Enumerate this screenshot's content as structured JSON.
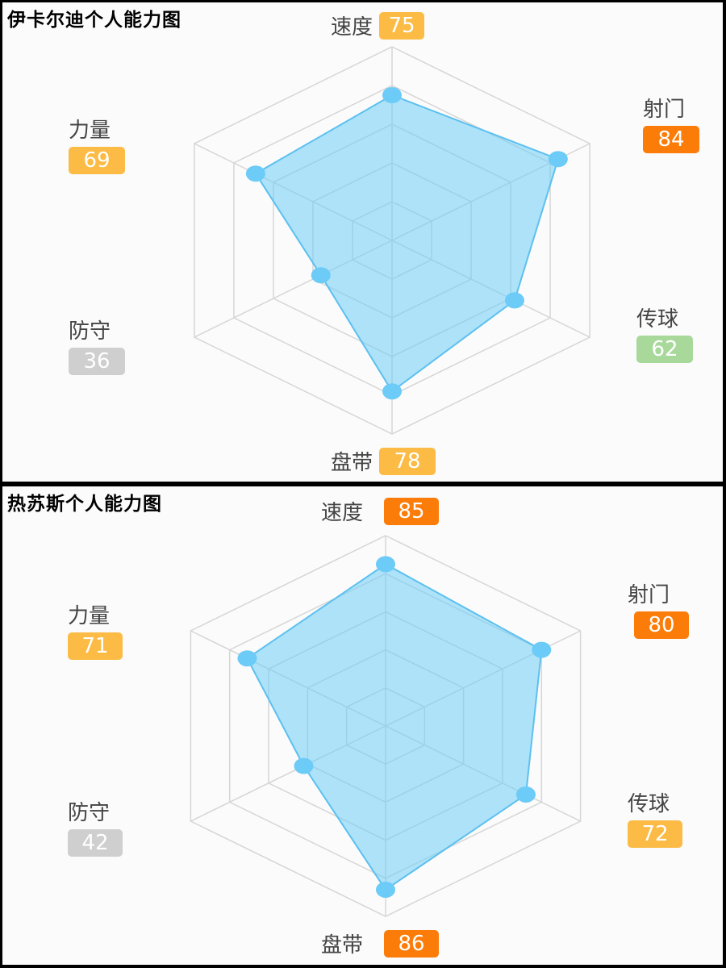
{
  "colors": {
    "grid": "#d6d6d6",
    "fill": "rgba(110,205,245,0.55)",
    "stroke": "#5cc0ef",
    "point": "#6ccbf7",
    "badge_high": "#fb7c09",
    "badge_mid": "#fbbb45",
    "badge_good": "#a8d99b",
    "badge_low": "#cfcfcf"
  },
  "charts": [
    {
      "title": "伊卡尔迪个人能力图",
      "axes": [
        {
          "name": "速度",
          "value": "75",
          "level": "mid"
        },
        {
          "name": "射门",
          "value": "84",
          "level": "high"
        },
        {
          "name": "传球",
          "value": "62",
          "level": "good"
        },
        {
          "name": "盘带",
          "value": "78",
          "level": "mid"
        },
        {
          "name": "防守",
          "value": "36",
          "level": "low"
        },
        {
          "name": "力量",
          "value": "69",
          "level": "mid"
        }
      ]
    },
    {
      "title": "热苏斯个人能力图",
      "axes": [
        {
          "name": "速度",
          "value": "85",
          "level": "high"
        },
        {
          "name": "射门",
          "value": "80",
          "level": "high"
        },
        {
          "name": "传球",
          "value": "72",
          "level": "mid"
        },
        {
          "name": "盘带",
          "value": "86",
          "level": "high"
        },
        {
          "name": "防守",
          "value": "42",
          "level": "low"
        },
        {
          "name": "力量",
          "value": "71",
          "level": "mid"
        }
      ]
    }
  ],
  "chart_data": [
    {
      "type": "radar",
      "title": "伊卡尔迪个人能力图",
      "categories": [
        "速度",
        "射门",
        "传球",
        "盘带",
        "防守",
        "力量"
      ],
      "values": [
        75,
        84,
        62,
        78,
        36,
        69
      ],
      "range": [
        0,
        100
      ],
      "rings": 5,
      "grid": true,
      "legend": "none"
    },
    {
      "type": "radar",
      "title": "热苏斯个人能力图",
      "categories": [
        "速度",
        "射门",
        "传球",
        "盘带",
        "防守",
        "力量"
      ],
      "values": [
        85,
        80,
        72,
        86,
        42,
        71
      ],
      "range": [
        0,
        100
      ],
      "rings": 5,
      "grid": true,
      "legend": "none"
    }
  ]
}
